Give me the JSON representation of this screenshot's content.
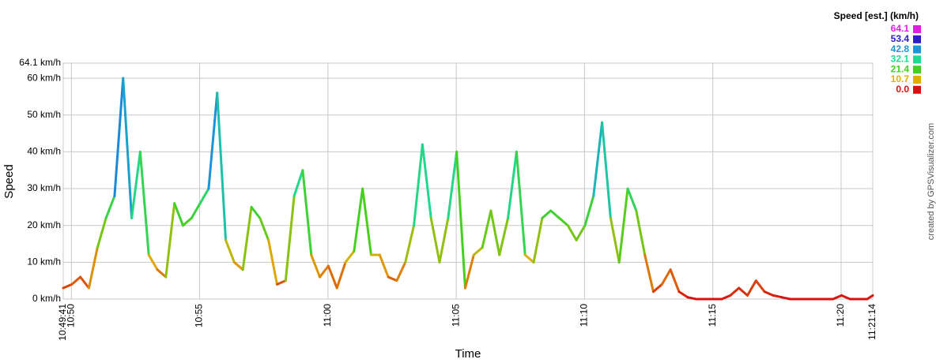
{
  "chart_data": {
    "type": "line",
    "y_label": "Speed",
    "x_label": "Time",
    "credit": "created by GPSVisualizer.com",
    "x": [
      "10:49:41",
      "10:50:01",
      "10:50:21",
      "10:50:41",
      "10:51:01",
      "10:51:21",
      "10:51:41",
      "10:52:01",
      "10:52:21",
      "10:52:41",
      "10:53:01",
      "10:53:21",
      "10:53:41",
      "10:54:01",
      "10:54:21",
      "10:54:41",
      "10:55:01",
      "10:55:21",
      "10:55:41",
      "10:56:01",
      "10:56:21",
      "10:56:41",
      "10:57:01",
      "10:57:21",
      "10:57:41",
      "10:58:01",
      "10:58:21",
      "10:58:41",
      "10:59:01",
      "10:59:21",
      "10:59:41",
      "11:00:01",
      "11:00:21",
      "11:00:41",
      "11:01:01",
      "11:01:21",
      "11:01:41",
      "11:02:01",
      "11:02:21",
      "11:02:41",
      "11:03:01",
      "11:03:21",
      "11:03:41",
      "11:04:01",
      "11:04:21",
      "11:04:41",
      "11:05:01",
      "11:05:21",
      "11:05:41",
      "11:06:01",
      "11:06:21",
      "11:06:41",
      "11:07:01",
      "11:07:21",
      "11:07:41",
      "11:08:01",
      "11:08:21",
      "11:08:41",
      "11:09:01",
      "11:09:21",
      "11:09:41",
      "11:10:01",
      "11:10:21",
      "11:10:41",
      "11:11:01",
      "11:11:21",
      "11:11:41",
      "11:12:01",
      "11:12:21",
      "11:12:41",
      "11:13:01",
      "11:13:21",
      "11:13:41",
      "11:14:01",
      "11:14:21",
      "11:14:41",
      "11:15:01",
      "11:15:21",
      "11:15:41",
      "11:16:01",
      "11:16:21",
      "11:16:41",
      "11:17:01",
      "11:17:21",
      "11:17:41",
      "11:18:01",
      "11:18:21",
      "11:18:41",
      "11:19:01",
      "11:19:21",
      "11:19:41",
      "11:20:01",
      "11:20:21",
      "11:20:41",
      "11:21:01",
      "11:21:14"
    ],
    "values": [
      3,
      4,
      6,
      3,
      14,
      22,
      28,
      60,
      22,
      40,
      12,
      8,
      6,
      26,
      20,
      22,
      26,
      30,
      56,
      16,
      10,
      8,
      25,
      22,
      16,
      4,
      5,
      28,
      35,
      12,
      6,
      9,
      3,
      10,
      13,
      30,
      12,
      12,
      6,
      5,
      10,
      20,
      42,
      22,
      10,
      22,
      40,
      3,
      12,
      14,
      24,
      12,
      22,
      40,
      12,
      10,
      22,
      24,
      22,
      20,
      16,
      20,
      28,
      48,
      22,
      10,
      30,
      24,
      12,
      2,
      4,
      8,
      2,
      0.5,
      0,
      0,
      0,
      0,
      1,
      3,
      1,
      5,
      2,
      1,
      0.5,
      0,
      0,
      0,
      0,
      0,
      0,
      1,
      0,
      0,
      0,
      1
    ],
    "xlim": [
      "10:49:41",
      "11:21:14"
    ],
    "xticks": [
      "10:49:41",
      "10:50",
      "10:55",
      "11:00",
      "11:05",
      "11:10",
      "11:15",
      "11:20",
      "11:21:14"
    ],
    "ylim": [
      0,
      64.1
    ],
    "yticks": [
      {
        "value": 0,
        "label": "0 km/h"
      },
      {
        "value": 10,
        "label": "10 km/h"
      },
      {
        "value": 20,
        "label": "20 km/h"
      },
      {
        "value": 30,
        "label": "30 km/h"
      },
      {
        "value": 40,
        "label": "40 km/h"
      },
      {
        "value": 50,
        "label": "50 km/h"
      },
      {
        "value": 60,
        "label": "60 km/h"
      },
      {
        "value": 64.1,
        "label": "64.1 km/h"
      }
    ],
    "grid": true,
    "color_scale": {
      "title": "Speed [est.] (km/h)",
      "stops": [
        {
          "value": 64.1,
          "color": "#e020e0"
        },
        {
          "value": 53.4,
          "color": "#2a1ec8"
        },
        {
          "value": 42.8,
          "color": "#1a96d8"
        },
        {
          "value": 32.1,
          "color": "#20d890"
        },
        {
          "value": 21.4,
          "color": "#44d020"
        },
        {
          "value": 10.7,
          "color": "#e0b000"
        },
        {
          "value": 0,
          "label": "0.0",
          "color": "#d81010"
        }
      ]
    }
  }
}
